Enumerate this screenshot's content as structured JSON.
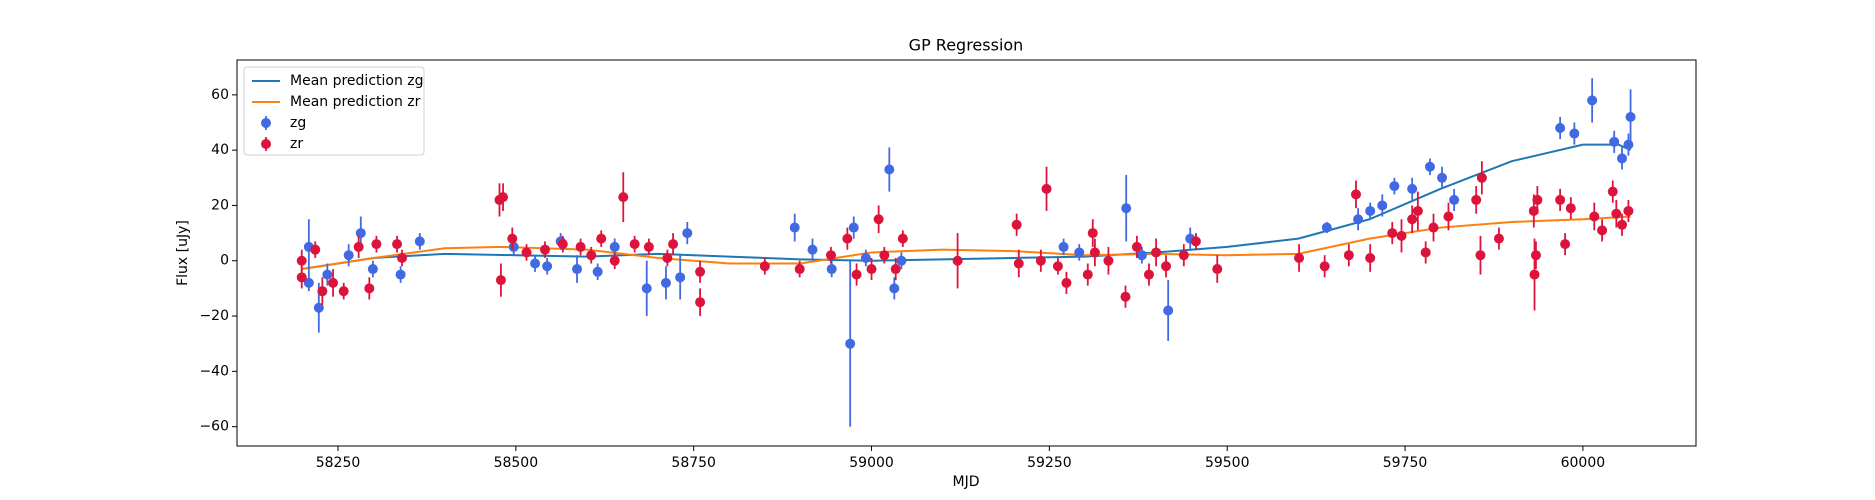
{
  "chart_data": {
    "type": "scatter",
    "title": "GP Regression",
    "xlabel": "MJD",
    "ylabel": "Flux [uJy]",
    "xlim": [
      58108,
      60159
    ],
    "ylim": [
      -67,
      72.6
    ],
    "xticks": [
      58250,
      58500,
      58750,
      59000,
      59250,
      59500,
      59750,
      60000
    ],
    "yticks": [
      {
        "value": -60,
        "label": "−60"
      },
      {
        "value": -40,
        "label": "−40"
      },
      {
        "value": -20,
        "label": "−20"
      },
      0,
      20,
      40,
      60
    ],
    "legend": "upper left",
    "series": [
      {
        "name": "Mean prediction zg",
        "color": "#1f77b4",
        "x": [
          58199,
          58250,
          58300,
          58400,
          58500,
          58600,
          58700,
          58800,
          58900,
          59000,
          59100,
          59200,
          59300,
          59400,
          59500,
          59600,
          59700,
          59800,
          59900,
          60000,
          60050,
          60067
        ],
        "values": [
          -3,
          -1,
          1,
          2.5,
          2,
          1.5,
          2.5,
          1.5,
          0.5,
          0,
          0.5,
          1,
          1.5,
          3,
          5,
          8,
          15,
          26,
          36,
          42,
          42,
          40
        ]
      },
      {
        "name": "Mean prediction zr",
        "color": "#ff7f0e",
        "x": [
          58199,
          58300,
          58400,
          58480,
          58600,
          58700,
          58800,
          58900,
          59000,
          59100,
          59200,
          59300,
          59400,
          59500,
          59600,
          59700,
          59800,
          59900,
          60000,
          60067
        ],
        "values": [
          -3,
          1,
          4.5,
          5,
          4,
          1,
          -1,
          -1,
          3,
          4,
          3.5,
          2,
          2.5,
          2,
          2.5,
          8,
          12,
          14,
          15,
          16
        ]
      },
      {
        "name": "zg",
        "color": "#4169e1",
        "x": [
          58209,
          58209,
          58223,
          58235,
          58265,
          58282,
          58299,
          58338,
          58365,
          58497,
          58527,
          58544,
          58563,
          58586,
          58615,
          58639,
          58684,
          58711,
          58741,
          58731,
          58892,
          58917,
          58944,
          58970,
          58975,
          58992,
          59025,
          59032,
          59042,
          59270,
          59292,
          59358,
          59380,
          59417,
          59448,
          59640,
          59684,
          59701,
          59718,
          59735,
          59760,
          59785,
          59802,
          59819,
          59968,
          59988,
          60013,
          60044,
          60055,
          60064,
          60067
        ],
        "values": [
          5,
          -8,
          -17,
          -5,
          2,
          10,
          -3,
          -5,
          7,
          5,
          -1,
          -2,
          7,
          -3,
          -4,
          5,
          -10,
          -8,
          10,
          -6,
          12,
          4,
          -3,
          -30,
          12,
          1,
          33,
          -10,
          0,
          5,
          3,
          19,
          2,
          -18,
          8,
          12,
          15,
          18,
          20,
          27,
          26,
          34,
          30,
          22,
          48,
          46,
          58,
          43,
          37,
          42,
          52
        ],
        "errors": [
          10,
          3,
          9,
          4,
          4,
          6,
          3,
          3,
          3,
          3,
          3,
          3,
          3,
          5,
          3,
          3,
          10,
          6,
          4,
          8,
          5,
          4,
          3,
          30,
          4,
          3,
          8,
          4,
          3,
          3,
          3,
          12,
          3,
          11,
          4,
          2,
          4,
          3,
          4,
          3,
          4,
          3,
          4,
          4,
          4,
          4,
          8,
          4,
          4,
          4,
          10
        ]
      },
      {
        "name": "zr",
        "color": "#dc143c",
        "x": [
          58199,
          58199,
          58218,
          58228,
          58243,
          58258,
          58279,
          58294,
          58304,
          58333,
          58340,
          58477,
          58479,
          58482,
          58495,
          58515,
          58541,
          58566,
          58591,
          58606,
          58620,
          58639,
          58651,
          58667,
          58687,
          58713,
          58721,
          58759,
          58759,
          58850,
          58899,
          58943,
          58966,
          58979,
          59000,
          59010,
          59018,
          59034,
          59044,
          59121,
          59204,
          59207,
          59238,
          59246,
          59262,
          59274,
          59304,
          59311,
          59314,
          59333,
          59357,
          59373,
          59390,
          59400,
          59414,
          59439,
          59456,
          59486,
          59601,
          59637,
          59671,
          59681,
          59701,
          59732,
          59745,
          59760,
          59768,
          59779,
          59790,
          59811,
          59850,
          59856,
          59858,
          59882,
          59931,
          59932,
          59934,
          59936,
          59968,
          59975,
          59983,
          60016,
          60027,
          60042,
          60047,
          60055,
          60064
        ],
        "values": [
          0,
          -6,
          4,
          -11,
          -8,
          -11,
          5,
          -10,
          6,
          6,
          1,
          22,
          -7,
          23,
          8,
          3,
          4,
          6,
          5,
          2,
          8,
          0,
          23,
          6,
          5,
          1,
          6,
          -4,
          -15,
          -2,
          -3,
          2,
          8,
          -5,
          -3,
          15,
          2,
          -3,
          8,
          0,
          13,
          -1,
          0,
          26,
          -2,
          -8,
          -5,
          10,
          3,
          0,
          -13,
          5,
          -5,
          3,
          -2,
          2,
          7,
          -3,
          1,
          -2,
          2,
          24,
          1,
          10,
          9,
          15,
          18,
          3,
          12,
          16,
          22,
          2,
          30,
          8,
          18,
          -5,
          2,
          22,
          22,
          6,
          19,
          16,
          11,
          25,
          17,
          13,
          18
        ],
        "errors": [
          4,
          4,
          3,
          5,
          5,
          3,
          4,
          4,
          3,
          3,
          3,
          6,
          6,
          5,
          4,
          3,
          3,
          3,
          3,
          3,
          3,
          3,
          9,
          3,
          3,
          3,
          4,
          4,
          5,
          3,
          3,
          3,
          4,
          4,
          4,
          5,
          3,
          4,
          3,
          10,
          4,
          5,
          4,
          8,
          3,
          4,
          4,
          5,
          5,
          5,
          4,
          4,
          4,
          5,
          4,
          4,
          3,
          5,
          5,
          4,
          4,
          5,
          5,
          4,
          6,
          5,
          7,
          4,
          5,
          5,
          5,
          7,
          6,
          4,
          6,
          13,
          5,
          5,
          4,
          4,
          4,
          5,
          4,
          4,
          5,
          4,
          4
        ]
      }
    ]
  }
}
